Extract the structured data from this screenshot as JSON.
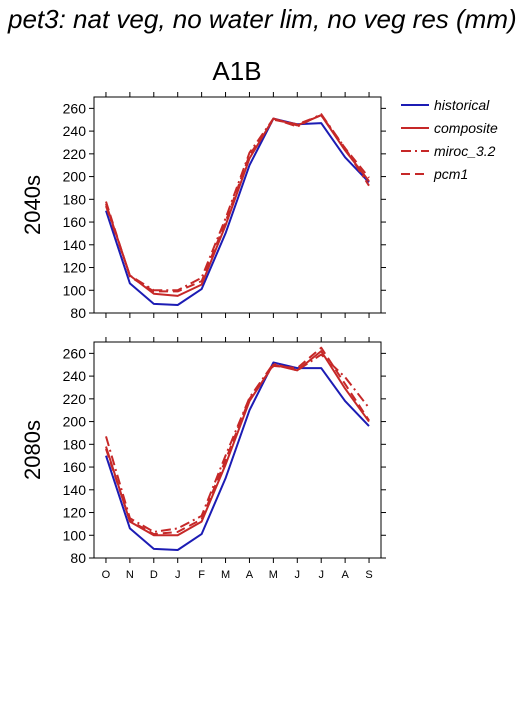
{
  "page_title": "pet3: nat veg, no water lim, no veg res (mm)",
  "chart_data": {
    "type": "line",
    "column_title": "A1B",
    "x_categories": [
      "O",
      "N",
      "D",
      "J",
      "F",
      "M",
      "A",
      "M",
      "J",
      "J",
      "A",
      "S"
    ],
    "ylim": [
      80,
      270
    ],
    "y_ticks": [
      80,
      100,
      120,
      140,
      160,
      180,
      200,
      220,
      240,
      260
    ],
    "grid": false,
    "legend_position": "top-right",
    "legend": [
      {
        "name": "historical",
        "color": "#1c1cb4",
        "style": "solid"
      },
      {
        "name": "composite",
        "color": "#c62828",
        "style": "solid"
      },
      {
        "name": "miroc_3.2",
        "color": "#c62828",
        "style": "dash-dot"
      },
      {
        "name": "pcm1",
        "color": "#c62828",
        "style": "dashed"
      }
    ],
    "panels": [
      {
        "row_label": "2040s",
        "series": [
          {
            "name": "historical",
            "values": [
              170,
              106,
              88,
              87,
              101,
              150,
              210,
              251,
              246,
              247,
              217,
              195
            ]
          },
          {
            "name": "composite",
            "values": [
              176,
              113,
              97,
              95,
              105,
              157,
              216,
              251,
              245,
              254,
              223,
              196
            ]
          },
          {
            "name": "miroc_3.2",
            "values": [
              174,
              113,
              100,
              100,
              111,
              163,
              221,
              251,
              244,
              255,
              225,
              192
            ]
          },
          {
            "name": "pcm1",
            "values": [
              178,
              112,
              99,
              99,
              108,
              160,
              219,
              250,
              246,
              254,
              225,
              199
            ]
          }
        ]
      },
      {
        "row_label": "2080s",
        "series": [
          {
            "name": "historical",
            "values": [
              170,
              106,
              88,
              87,
              101,
              150,
              210,
              252,
              247,
              247,
              218,
              196
            ]
          },
          {
            "name": "composite",
            "values": [
              178,
              112,
              100,
              100,
              112,
              162,
              218,
              250,
              245,
              262,
              229,
              200
            ]
          },
          {
            "name": "miroc_3.2",
            "values": [
              187,
              115,
              103,
              106,
              117,
              170,
              221,
              251,
              245,
              259,
              239,
              212
            ]
          },
          {
            "name": "pcm1",
            "values": [
              176,
              113,
              101,
              103,
              114,
              166,
              220,
              249,
              247,
              265,
              233,
              201
            ]
          }
        ]
      }
    ]
  }
}
